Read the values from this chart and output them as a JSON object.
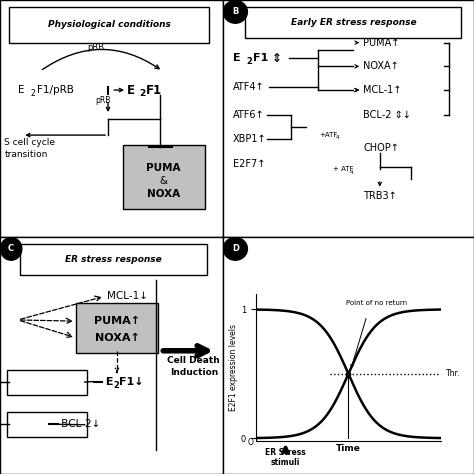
{
  "bg_color": "#ffffff",
  "gray_box": "#cccccc",
  "panel_A_title": "Physiological conditions",
  "panel_B_title": "Early ER stress response",
  "panel_C_title": "ER stress response",
  "panel_D_annotation": "Point of no return",
  "panel_D_xlabel": "Time",
  "panel_D_ylabel": "E2F1 expression levels",
  "panel_D_stimuli": "ER Stress\nstimuli",
  "panel_D_thr": "Thr."
}
